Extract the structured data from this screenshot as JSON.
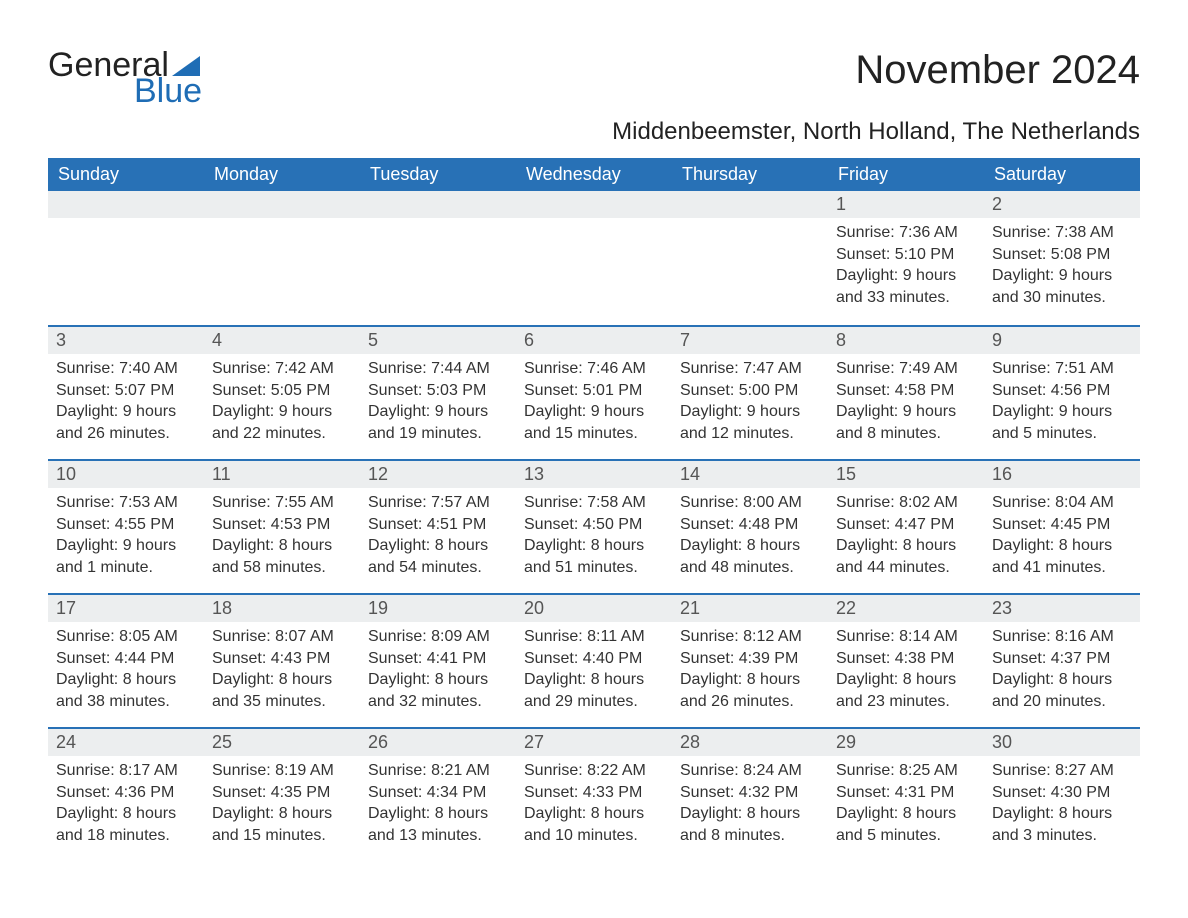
{
  "brand": {
    "word1": "General",
    "word2": "Blue",
    "triangle_color": "#1f6db5"
  },
  "title": "November 2024",
  "location": "Middenbeemster, North Holland, The Netherlands",
  "style": {
    "header_bg": "#2871b6",
    "header_fg": "#ffffff",
    "daynum_bg": "#eceeef",
    "daynum_fg": "#555555",
    "rule_color": "#2871b6",
    "body_fg": "#333333",
    "page_bg": "#ffffff",
    "title_fontsize": 40,
    "location_fontsize": 24,
    "weekday_fontsize": 18,
    "body_fontsize": 16
  },
  "weekdays": [
    "Sunday",
    "Monday",
    "Tuesday",
    "Wednesday",
    "Thursday",
    "Friday",
    "Saturday"
  ],
  "weeks": [
    [
      null,
      null,
      null,
      null,
      null,
      {
        "n": "1",
        "sunrise": "Sunrise: 7:36 AM",
        "sunset": "Sunset: 5:10 PM",
        "day1": "Daylight: 9 hours",
        "day2": "and 33 minutes."
      },
      {
        "n": "2",
        "sunrise": "Sunrise: 7:38 AM",
        "sunset": "Sunset: 5:08 PM",
        "day1": "Daylight: 9 hours",
        "day2": "and 30 minutes."
      }
    ],
    [
      {
        "n": "3",
        "sunrise": "Sunrise: 7:40 AM",
        "sunset": "Sunset: 5:07 PM",
        "day1": "Daylight: 9 hours",
        "day2": "and 26 minutes."
      },
      {
        "n": "4",
        "sunrise": "Sunrise: 7:42 AM",
        "sunset": "Sunset: 5:05 PM",
        "day1": "Daylight: 9 hours",
        "day2": "and 22 minutes."
      },
      {
        "n": "5",
        "sunrise": "Sunrise: 7:44 AM",
        "sunset": "Sunset: 5:03 PM",
        "day1": "Daylight: 9 hours",
        "day2": "and 19 minutes."
      },
      {
        "n": "6",
        "sunrise": "Sunrise: 7:46 AM",
        "sunset": "Sunset: 5:01 PM",
        "day1": "Daylight: 9 hours",
        "day2": "and 15 minutes."
      },
      {
        "n": "7",
        "sunrise": "Sunrise: 7:47 AM",
        "sunset": "Sunset: 5:00 PM",
        "day1": "Daylight: 9 hours",
        "day2": "and 12 minutes."
      },
      {
        "n": "8",
        "sunrise": "Sunrise: 7:49 AM",
        "sunset": "Sunset: 4:58 PM",
        "day1": "Daylight: 9 hours",
        "day2": "and 8 minutes."
      },
      {
        "n": "9",
        "sunrise": "Sunrise: 7:51 AM",
        "sunset": "Sunset: 4:56 PM",
        "day1": "Daylight: 9 hours",
        "day2": "and 5 minutes."
      }
    ],
    [
      {
        "n": "10",
        "sunrise": "Sunrise: 7:53 AM",
        "sunset": "Sunset: 4:55 PM",
        "day1": "Daylight: 9 hours",
        "day2": "and 1 minute."
      },
      {
        "n": "11",
        "sunrise": "Sunrise: 7:55 AM",
        "sunset": "Sunset: 4:53 PM",
        "day1": "Daylight: 8 hours",
        "day2": "and 58 minutes."
      },
      {
        "n": "12",
        "sunrise": "Sunrise: 7:57 AM",
        "sunset": "Sunset: 4:51 PM",
        "day1": "Daylight: 8 hours",
        "day2": "and 54 minutes."
      },
      {
        "n": "13",
        "sunrise": "Sunrise: 7:58 AM",
        "sunset": "Sunset: 4:50 PM",
        "day1": "Daylight: 8 hours",
        "day2": "and 51 minutes."
      },
      {
        "n": "14",
        "sunrise": "Sunrise: 8:00 AM",
        "sunset": "Sunset: 4:48 PM",
        "day1": "Daylight: 8 hours",
        "day2": "and 48 minutes."
      },
      {
        "n": "15",
        "sunrise": "Sunrise: 8:02 AM",
        "sunset": "Sunset: 4:47 PM",
        "day1": "Daylight: 8 hours",
        "day2": "and 44 minutes."
      },
      {
        "n": "16",
        "sunrise": "Sunrise: 8:04 AM",
        "sunset": "Sunset: 4:45 PM",
        "day1": "Daylight: 8 hours",
        "day2": "and 41 minutes."
      }
    ],
    [
      {
        "n": "17",
        "sunrise": "Sunrise: 8:05 AM",
        "sunset": "Sunset: 4:44 PM",
        "day1": "Daylight: 8 hours",
        "day2": "and 38 minutes."
      },
      {
        "n": "18",
        "sunrise": "Sunrise: 8:07 AM",
        "sunset": "Sunset: 4:43 PM",
        "day1": "Daylight: 8 hours",
        "day2": "and 35 minutes."
      },
      {
        "n": "19",
        "sunrise": "Sunrise: 8:09 AM",
        "sunset": "Sunset: 4:41 PM",
        "day1": "Daylight: 8 hours",
        "day2": "and 32 minutes."
      },
      {
        "n": "20",
        "sunrise": "Sunrise: 8:11 AM",
        "sunset": "Sunset: 4:40 PM",
        "day1": "Daylight: 8 hours",
        "day2": "and 29 minutes."
      },
      {
        "n": "21",
        "sunrise": "Sunrise: 8:12 AM",
        "sunset": "Sunset: 4:39 PM",
        "day1": "Daylight: 8 hours",
        "day2": "and 26 minutes."
      },
      {
        "n": "22",
        "sunrise": "Sunrise: 8:14 AM",
        "sunset": "Sunset: 4:38 PM",
        "day1": "Daylight: 8 hours",
        "day2": "and 23 minutes."
      },
      {
        "n": "23",
        "sunrise": "Sunrise: 8:16 AM",
        "sunset": "Sunset: 4:37 PM",
        "day1": "Daylight: 8 hours",
        "day2": "and 20 minutes."
      }
    ],
    [
      {
        "n": "24",
        "sunrise": "Sunrise: 8:17 AM",
        "sunset": "Sunset: 4:36 PM",
        "day1": "Daylight: 8 hours",
        "day2": "and 18 minutes."
      },
      {
        "n": "25",
        "sunrise": "Sunrise: 8:19 AM",
        "sunset": "Sunset: 4:35 PM",
        "day1": "Daylight: 8 hours",
        "day2": "and 15 minutes."
      },
      {
        "n": "26",
        "sunrise": "Sunrise: 8:21 AM",
        "sunset": "Sunset: 4:34 PM",
        "day1": "Daylight: 8 hours",
        "day2": "and 13 minutes."
      },
      {
        "n": "27",
        "sunrise": "Sunrise: 8:22 AM",
        "sunset": "Sunset: 4:33 PM",
        "day1": "Daylight: 8 hours",
        "day2": "and 10 minutes."
      },
      {
        "n": "28",
        "sunrise": "Sunrise: 8:24 AM",
        "sunset": "Sunset: 4:32 PM",
        "day1": "Daylight: 8 hours",
        "day2": "and 8 minutes."
      },
      {
        "n": "29",
        "sunrise": "Sunrise: 8:25 AM",
        "sunset": "Sunset: 4:31 PM",
        "day1": "Daylight: 8 hours",
        "day2": "and 5 minutes."
      },
      {
        "n": "30",
        "sunrise": "Sunrise: 8:27 AM",
        "sunset": "Sunset: 4:30 PM",
        "day1": "Daylight: 8 hours",
        "day2": "and 3 minutes."
      }
    ]
  ]
}
